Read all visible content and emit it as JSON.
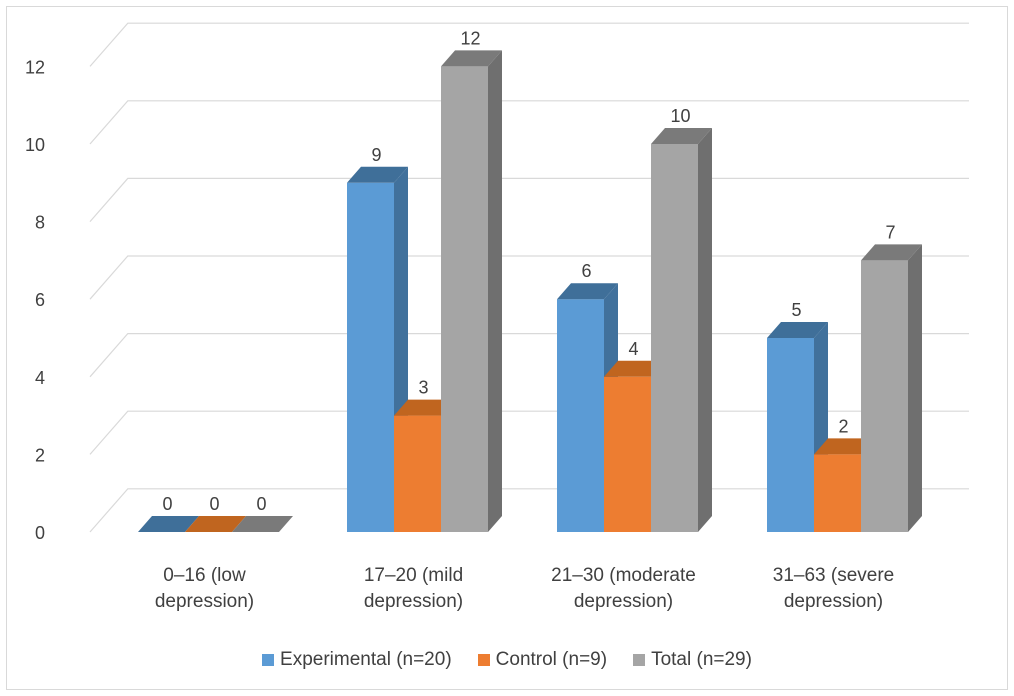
{
  "chart_data": {
    "type": "bar",
    "style": "3d-clustered-column",
    "categories": [
      [
        "0–16 (low",
        "depression)"
      ],
      [
        "17–20 (mild",
        "depression)"
      ],
      [
        "21–30 (moderate",
        "depression)"
      ],
      [
        "31–63 (severe",
        "depression)"
      ]
    ],
    "series": [
      {
        "name": "Experimental (n=20)",
        "values": [
          0,
          9,
          6,
          5
        ],
        "color": "#5b9bd5",
        "side_color": "#41719c",
        "top_color": "#3f6f99"
      },
      {
        "name": "Control (n=9)",
        "values": [
          0,
          3,
          4,
          2
        ],
        "color": "#ed7d31",
        "side_color": "#b85c1f",
        "top_color": "#c0651f"
      },
      {
        "name": "Total (n=29)",
        "values": [
          0,
          12,
          10,
          7
        ],
        "color": "#a5a5a5",
        "side_color": "#6f6f6f",
        "top_color": "#7a7a7a"
      }
    ],
    "yticks": [
      "0",
      "2",
      "4",
      "6",
      "8",
      "10",
      "12"
    ],
    "ylim": [
      0,
      12
    ],
    "grid": true,
    "data_labels": true,
    "legend": "bottom",
    "title": "",
    "xlabel": "",
    "ylabel": ""
  }
}
